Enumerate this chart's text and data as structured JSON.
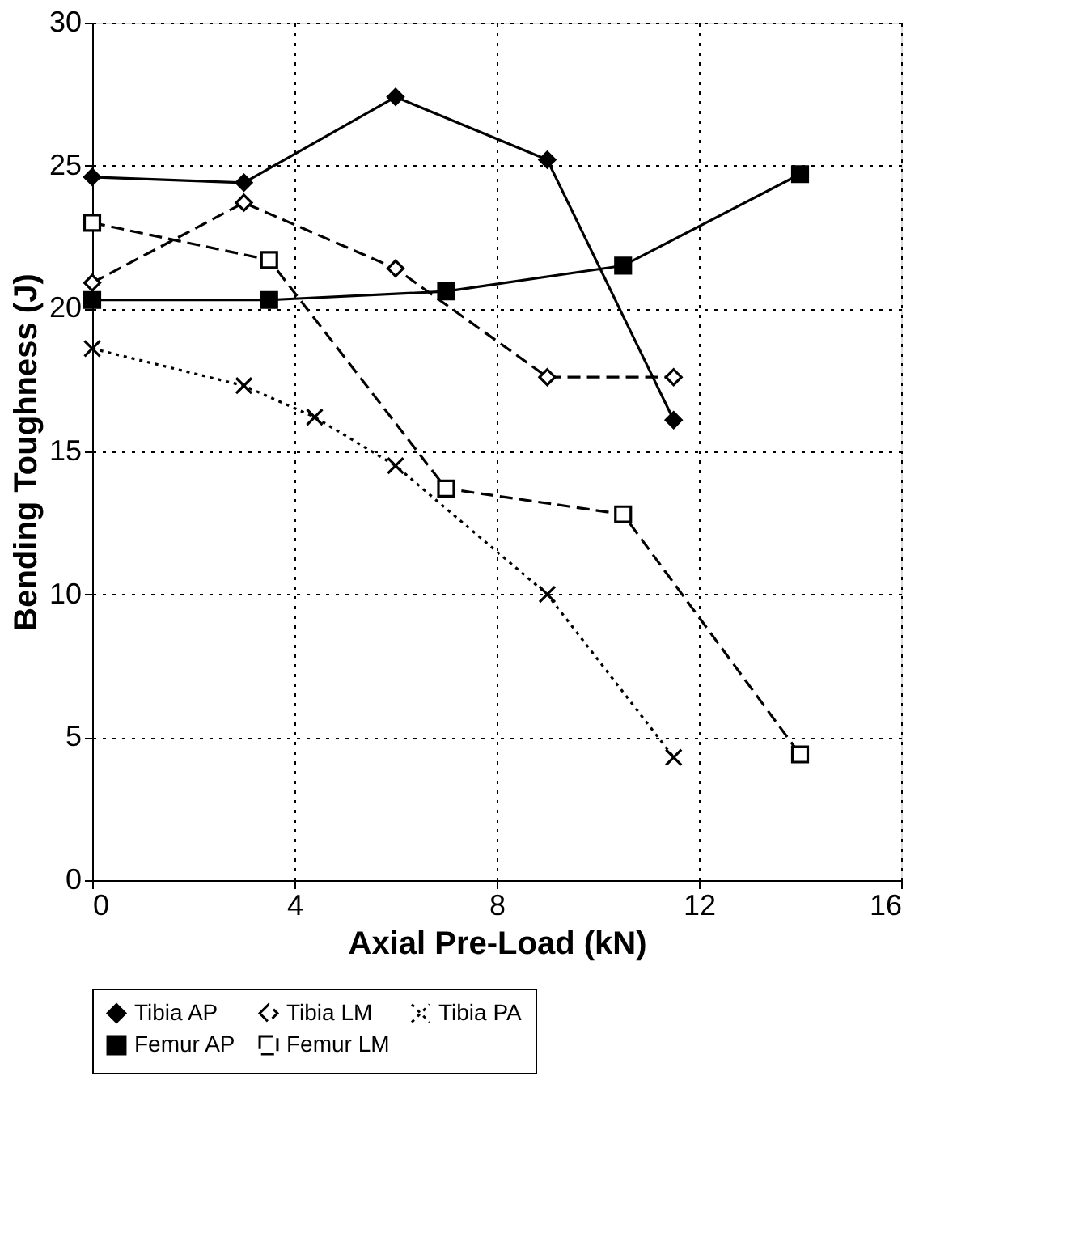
{
  "chart_data": {
    "type": "line",
    "xlabel": "Axial Pre-Load (kN)",
    "ylabel": "Bending Toughness (J)",
    "xlim": [
      0,
      16
    ],
    "xticks": [
      0,
      4,
      8,
      12,
      16
    ],
    "ylim": [
      0,
      30
    ],
    "yticks": [
      0,
      5,
      10,
      15,
      20,
      25,
      30
    ],
    "grid": true,
    "legend": "bottom",
    "series": [
      {
        "name": "Tibia AP",
        "color": "#000000",
        "marker": "diamond",
        "line_style": "solid",
        "x": [
          0,
          3,
          6,
          9,
          11.5
        ],
        "values": [
          24.6,
          24.4,
          27.4,
          25.2,
          16.1
        ]
      },
      {
        "name": "Tibia LM",
        "color": "#000000",
        "marker": "diamond",
        "line_style": "dashed",
        "x": [
          0,
          3,
          6,
          9,
          11.5
        ],
        "values": [
          20.9,
          23.7,
          21.4,
          17.6,
          17.6
        ]
      },
      {
        "name": "Tibia PA",
        "color": "#000000",
        "marker": "cross",
        "line_style": "dotted",
        "x": [
          0,
          3,
          4.4,
          6,
          9,
          11.5
        ],
        "values": [
          18.6,
          17.3,
          16.2,
          14.5,
          10.0,
          4.3
        ]
      },
      {
        "name": "Femur AP",
        "color": "#000000",
        "marker": "square",
        "line_style": "solid",
        "x": [
          0,
          3.5,
          7,
          10.5,
          14
        ],
        "values": [
          20.3,
          20.3,
          20.6,
          21.5,
          24.7
        ]
      },
      {
        "name": "Femur LM",
        "color": "#000000",
        "marker": "square",
        "line_style": "dashed",
        "x": [
          0,
          3.5,
          7,
          10.5,
          14
        ],
        "values": [
          23.0,
          21.7,
          13.7,
          12.8,
          4.4
        ]
      }
    ]
  }
}
